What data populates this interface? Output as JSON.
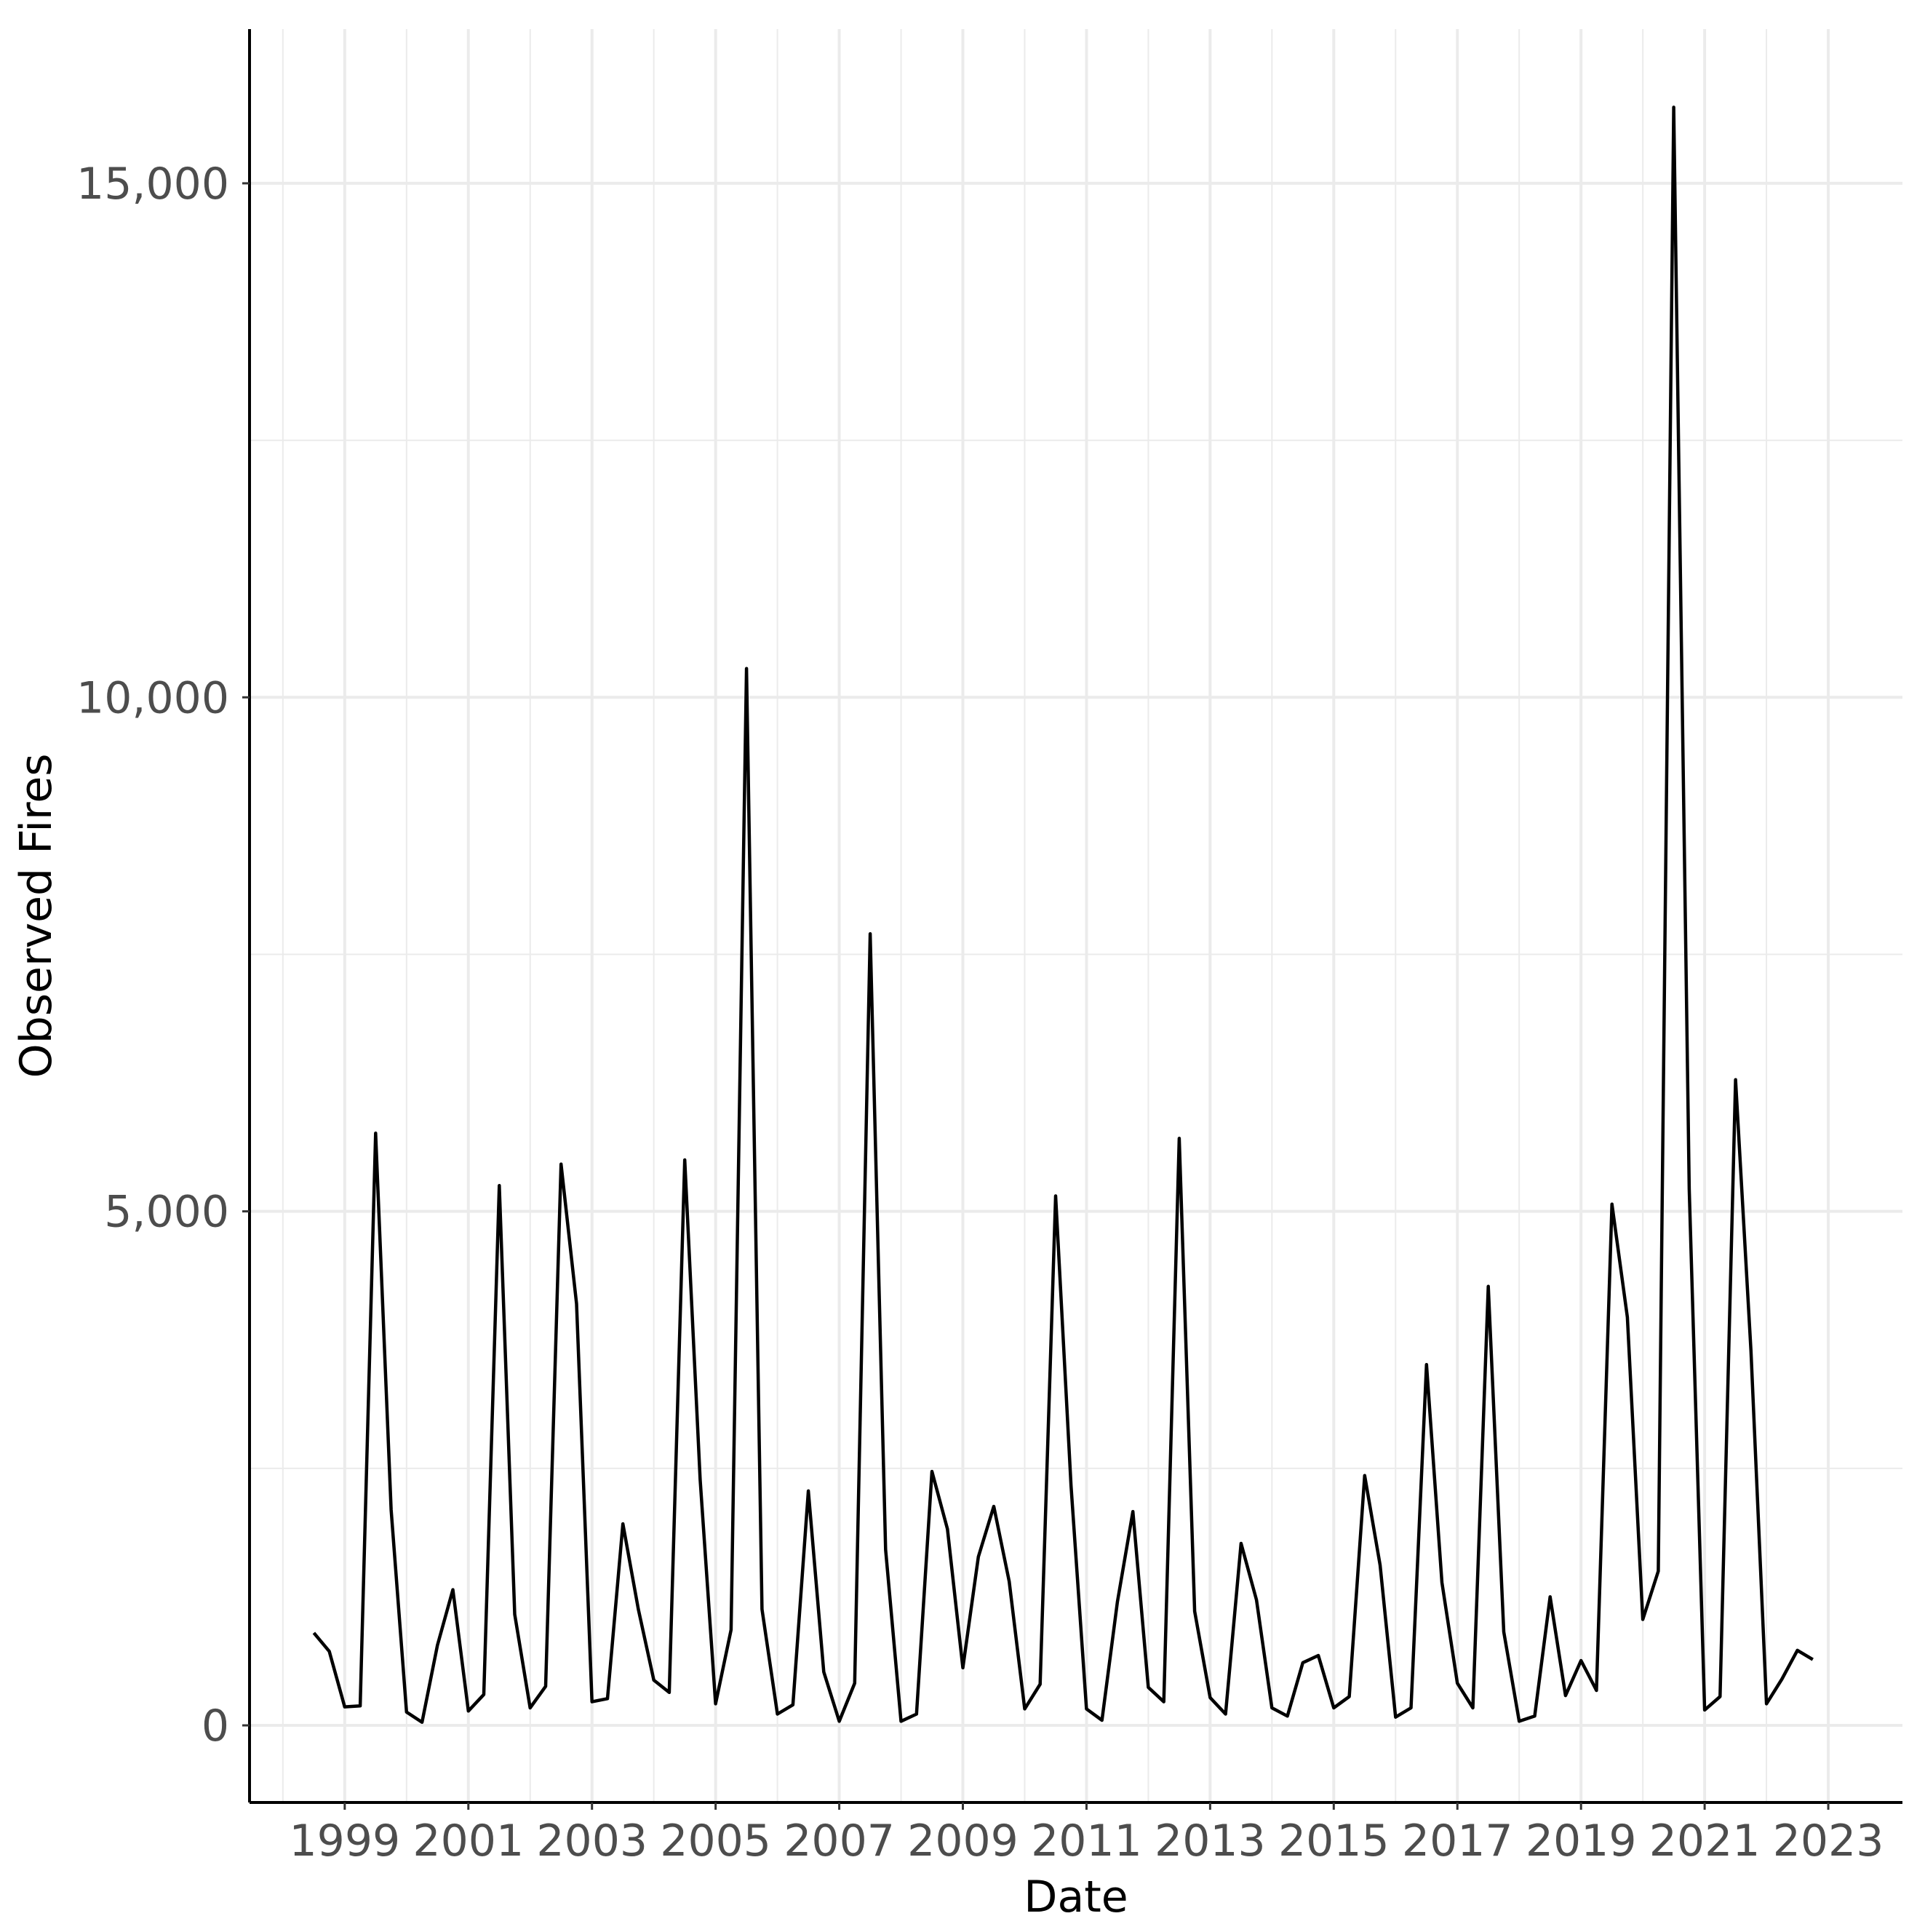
{
  "chart_data": {
    "type": "line",
    "title": "",
    "xlabel": "Date",
    "ylabel": "Observed Fires",
    "xlim": [
      1997.46,
      2024.2
    ],
    "ylim": [
      -750,
      16500
    ],
    "x_ticks": [
      1999,
      2001,
      2003,
      2005,
      2007,
      2009,
      2011,
      2013,
      2015,
      2017,
      2019,
      2021,
      2023
    ],
    "x_tick_labels": [
      "1999",
      "2001",
      "2003",
      "2005",
      "2007",
      "2009",
      "2011",
      "2013",
      "2015",
      "2017",
      "2019",
      "2021",
      "2023"
    ],
    "y_ticks": [
      0,
      5000,
      10000,
      15000
    ],
    "y_tick_labels": [
      "0",
      "5,000",
      "10,000",
      "15,000"
    ],
    "grid": true,
    "legend": "none",
    "series": [
      {
        "color": "#000000",
        "x": [
          1998.5,
          1998.75,
          1999.0,
          1999.25,
          1999.5,
          1999.75,
          2000.0,
          2000.25,
          2000.5,
          2000.75,
          2001.0,
          2001.25,
          2001.5,
          2001.75,
          2002.0,
          2002.25,
          2002.5,
          2002.75,
          2003.0,
          2003.25,
          2003.5,
          2003.75,
          2004.0,
          2004.25,
          2004.5,
          2004.75,
          2005.0,
          2005.25,
          2005.5,
          2005.75,
          2006.0,
          2006.25,
          2006.5,
          2006.75,
          2007.0,
          2007.25,
          2007.5,
          2007.75,
          2008.0,
          2008.25,
          2008.5,
          2008.75,
          2009.0,
          2009.25,
          2009.5,
          2009.75,
          2010.0,
          2010.25,
          2010.5,
          2010.75,
          2011.0,
          2011.25,
          2011.5,
          2011.75,
          2012.0,
          2012.25,
          2012.5,
          2012.75,
          2013.0,
          2013.25,
          2013.5,
          2013.75,
          2014.0,
          2014.25,
          2014.5,
          2014.75,
          2015.0,
          2015.25,
          2015.5,
          2015.75,
          2016.0,
          2016.25,
          2016.5,
          2016.75,
          2017.0,
          2017.25,
          2017.5,
          2017.75,
          2018.0,
          2018.25,
          2018.5,
          2018.75,
          2019.0,
          2019.25,
          2019.5,
          2019.75,
          2020.0,
          2020.25,
          2020.5,
          2020.75,
          2021.0,
          2021.25,
          2021.5,
          2021.75,
          2022.0,
          2022.25,
          2022.5,
          2022.75
        ],
        "y": [
          900,
          720,
          180,
          190,
          5760,
          2100,
          130,
          30,
          780,
          1320,
          140,
          300,
          5250,
          1080,
          170,
          380,
          5460,
          4100,
          230,
          260,
          1960,
          1130,
          440,
          320,
          5500,
          2390,
          210,
          930,
          10280,
          1130,
          110,
          200,
          2280,
          520,
          40,
          410,
          7700,
          1710,
          40,
          110,
          2470,
          1910,
          560,
          1640,
          2130,
          1400,
          160,
          400,
          5150,
          2330,
          160,
          50,
          1200,
          2080,
          370,
          230,
          5710,
          1110,
          270,
          110,
          1770,
          1220,
          170,
          90,
          610,
          680,
          170,
          280,
          2430,
          1560,
          80,
          170,
          3510,
          1390,
          410,
          170,
          4270,
          910,
          40,
          90,
          1250,
          290,
          630,
          340,
          5070,
          3970,
          1030,
          1500,
          15740,
          5220,
          150,
          280,
          6280,
          3640,
          210,
          450,
          730,
          640
        ]
      }
    ]
  }
}
